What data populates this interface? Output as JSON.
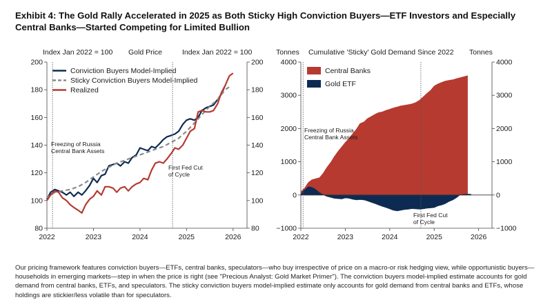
{
  "title": "Exhibit 4: The Gold Rally Accelerated in 2025 as Both Sticky High Conviction Buyers—ETF Investors and Especially Central Banks—Started Competing for Limited Bullion",
  "footnote": "Our pricing framework features conviction buyers—ETFs, central banks, speculators—who buy irrespective of price on a macro-or risk hedging view, while opportunistic buyers—households in emerging markets—step in when the price is right (see \"Precious Analyst: Gold Market Primer\"). The conviction buyers model-implied estimate accounts for gold demand from central banks, ETFs, and speculators. The sticky conviction buyers model-implied estimate only accounts for gold demand from central banks and ETFs, whose holdings are stickier/less volatile than for speculators.",
  "colors": {
    "navy": "#0d2b52",
    "gray": "#8a8a8a",
    "red": "#b63a30"
  },
  "chart_data": [
    {
      "type": "line",
      "title": "Gold Price",
      "ylabel_left": "Index Jan 2022 = 100",
      "ylabel_right": "Index Jan 2022 = 100",
      "xlim": [
        2022.0,
        2026.3
      ],
      "ylim": [
        80,
        200
      ],
      "xticks": [
        "2022",
        "2023",
        "2024",
        "2025",
        "2026"
      ],
      "yticks": [
        "80",
        "100",
        "120",
        "140",
        "160",
        "180",
        "200"
      ],
      "legend_position": "top-left",
      "series": [
        {
          "name": "Conviction Buyers Model-Implied",
          "color": "#0d2b52",
          "dash": "solid",
          "x": [
            2022.0,
            2022.08,
            2022.17,
            2022.25,
            2022.33,
            2022.42,
            2022.5,
            2022.58,
            2022.67,
            2022.75,
            2022.83,
            2022.92,
            2023.0,
            2023.08,
            2023.17,
            2023.25,
            2023.33,
            2023.42,
            2023.5,
            2023.58,
            2023.67,
            2023.75,
            2023.83,
            2023.92,
            2024.0,
            2024.08,
            2024.17,
            2024.25,
            2024.33,
            2024.42,
            2024.5,
            2024.58,
            2024.67,
            2024.75,
            2024.83,
            2024.92,
            2025.0,
            2025.08,
            2025.17,
            2025.25,
            2025.33,
            2025.42,
            2025.5,
            2025.58,
            2025.67,
            2025.75,
            2025.83
          ],
          "y": [
            101,
            106,
            108,
            107,
            106,
            104,
            106,
            103,
            106,
            104,
            107,
            111,
            116,
            113,
            118,
            119,
            125,
            126,
            127,
            125,
            128,
            127,
            131,
            133,
            138,
            137,
            136,
            139,
            138,
            141,
            144,
            146,
            147,
            148,
            150,
            155,
            158,
            159,
            158,
            160,
            165,
            167,
            168,
            169,
            173,
            177,
            183
          ]
        },
        {
          "name": "Sticky Conviction Buyers Model-Implied",
          "color": "#8a8a8a",
          "dash": "dashed",
          "x": [
            2022.0,
            2022.17,
            2022.33,
            2022.5,
            2022.67,
            2022.83,
            2023.0,
            2023.17,
            2023.33,
            2023.5,
            2023.67,
            2023.83,
            2024.0,
            2024.17,
            2024.33,
            2024.5,
            2024.67,
            2024.83,
            2025.0,
            2025.17,
            2025.33,
            2025.5,
            2025.67,
            2025.83,
            2025.92
          ],
          "y": [
            102,
            106,
            107,
            108,
            110,
            113,
            117,
            121,
            124,
            127,
            129,
            131,
            133,
            135,
            137,
            139,
            142,
            145,
            150,
            156,
            162,
            168,
            173,
            180,
            182
          ]
        },
        {
          "name": "Realized",
          "color": "#b63a30",
          "dash": "solid",
          "x": [
            2022.0,
            2022.08,
            2022.17,
            2022.25,
            2022.33,
            2022.42,
            2022.5,
            2022.58,
            2022.67,
            2022.75,
            2022.83,
            2022.92,
            2023.0,
            2023.08,
            2023.17,
            2023.25,
            2023.33,
            2023.42,
            2023.5,
            2023.58,
            2023.67,
            2023.75,
            2023.83,
            2023.92,
            2024.0,
            2024.08,
            2024.17,
            2024.25,
            2024.33,
            2024.42,
            2024.5,
            2024.58,
            2024.67,
            2024.75,
            2024.83,
            2024.92,
            2025.0,
            2025.08,
            2025.17,
            2025.25,
            2025.33,
            2025.42,
            2025.5,
            2025.58,
            2025.67,
            2025.75,
            2025.83,
            2025.92,
            2026.0
          ],
          "y": [
            100,
            104,
            107,
            106,
            102,
            100,
            97,
            95,
            93,
            91,
            97,
            101,
            103,
            107,
            104,
            110,
            110,
            109,
            106,
            109,
            110,
            107,
            110,
            112,
            113,
            116,
            115,
            122,
            127,
            128,
            127,
            130,
            134,
            138,
            137,
            140,
            145,
            150,
            152,
            164,
            165,
            164,
            164,
            165,
            170,
            178,
            183,
            190,
            192
          ]
        }
      ],
      "annotations": [
        {
          "x": 2022.12,
          "text": "Freezing of Russia\nCentral Bank Assets"
        },
        {
          "x": 2024.7,
          "text": "First Fed Cut\nof Cycle"
        }
      ]
    },
    {
      "type": "area",
      "title": "Cumulative 'Sticky' Gold Demand Since 2022",
      "ylabel_left": "Tonnes",
      "ylabel_right": "Tonnes",
      "xlim": [
        2022.0,
        2026.3
      ],
      "ylim": [
        -1000,
        4000
      ],
      "xticks": [
        "2022",
        "2023",
        "2024",
        "2025",
        "2026"
      ],
      "yticks": [
        "−1000",
        "0",
        "1000",
        "2000",
        "3000",
        "4000"
      ],
      "legend_position": "top-left",
      "series": [
        {
          "name": "Central Banks",
          "color": "#b63a30",
          "x": [
            2022.0,
            2022.08,
            2022.17,
            2022.25,
            2022.33,
            2022.42,
            2022.5,
            2022.58,
            2022.67,
            2022.75,
            2022.83,
            2022.92,
            2023.0,
            2023.08,
            2023.17,
            2023.25,
            2023.33,
            2023.42,
            2023.5,
            2023.58,
            2023.67,
            2023.75,
            2023.83,
            2023.92,
            2024.0,
            2024.08,
            2024.17,
            2024.25,
            2024.33,
            2024.42,
            2024.5,
            2024.58,
            2024.67,
            2024.75,
            2024.83,
            2024.92,
            2025.0,
            2025.08,
            2025.17,
            2025.25,
            2025.33,
            2025.42,
            2025.5,
            2025.58,
            2025.67,
            2025.75
          ],
          "y": [
            100,
            200,
            380,
            460,
            490,
            520,
            650,
            820,
            980,
            1150,
            1300,
            1450,
            1580,
            1700,
            1850,
            1980,
            2150,
            2200,
            2300,
            2360,
            2430,
            2480,
            2500,
            2550,
            2580,
            2620,
            2650,
            2680,
            2700,
            2720,
            2740,
            2780,
            2850,
            2950,
            3050,
            3150,
            3280,
            3340,
            3390,
            3430,
            3450,
            3470,
            3500,
            3530,
            3560,
            3590
          ]
        },
        {
          "name": "Gold ETF",
          "color": "#0d2b52",
          "x": [
            2022.0,
            2022.08,
            2022.17,
            2022.25,
            2022.33,
            2022.42,
            2022.5,
            2022.58,
            2022.67,
            2022.75,
            2022.83,
            2022.92,
            2023.0,
            2023.08,
            2023.17,
            2023.25,
            2023.33,
            2023.42,
            2023.5,
            2023.58,
            2023.67,
            2023.75,
            2023.83,
            2023.92,
            2024.0,
            2024.08,
            2024.17,
            2024.25,
            2024.33,
            2024.42,
            2024.5,
            2024.58,
            2024.67,
            2024.75,
            2024.83,
            2024.92,
            2025.0,
            2025.08,
            2025.17,
            2025.25,
            2025.33,
            2025.42,
            2025.5,
            2025.58,
            2025.67,
            2025.75,
            2025.83
          ],
          "y": [
            20,
            150,
            250,
            230,
            170,
            70,
            10,
            -40,
            -70,
            -100,
            -110,
            -120,
            -90,
            -100,
            -130,
            -150,
            -140,
            -150,
            -180,
            -220,
            -260,
            -300,
            -340,
            -380,
            -420,
            -460,
            -480,
            -460,
            -440,
            -430,
            -410,
            -420,
            -430,
            -420,
            -400,
            -390,
            -380,
            -330,
            -300,
            -260,
            -200,
            -150,
            -80,
            0,
            20,
            30,
            20
          ]
        }
      ],
      "annotations": [
        {
          "x": 2022.05,
          "text": "Freezing of Russia\nCentral Bank Assets"
        },
        {
          "x": 2024.7,
          "text": "First Fed Cut\nof Cycle"
        }
      ]
    }
  ]
}
